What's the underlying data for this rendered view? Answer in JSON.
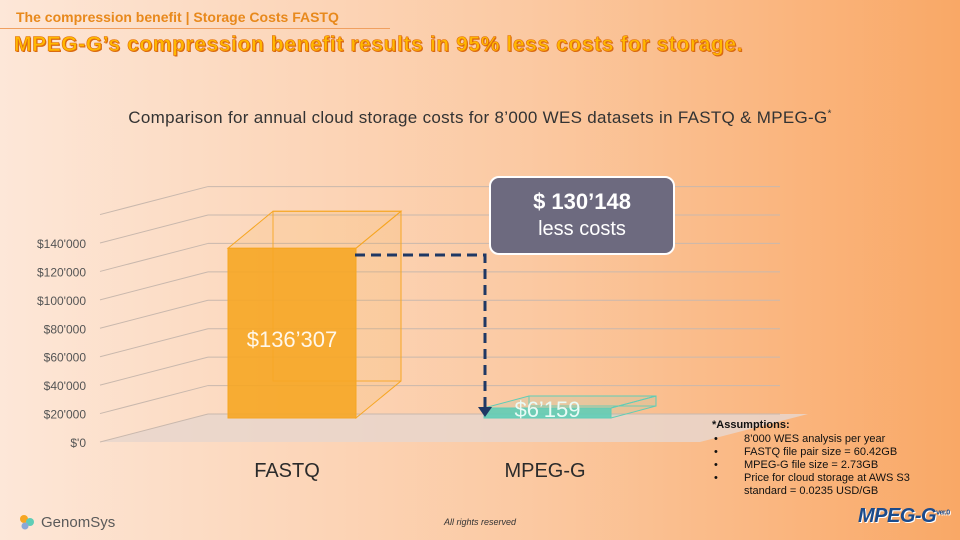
{
  "header": {
    "tag": "The compression benefit | Storage Costs FASTQ",
    "headline": "MPEG-G’s compression benefit results in 95% less costs for storage."
  },
  "chart_data": {
    "type": "bar",
    "title": "Comparison for annual cloud storage costs for 8’000 WES datasets in FASTQ & MPEG-G",
    "title_footnote": "*",
    "categories": [
      "FASTQ",
      "MPEG-G"
    ],
    "values": [
      136307,
      6159
    ],
    "value_labels": [
      "$136’307",
      "$6’159"
    ],
    "ylim": [
      0,
      140000
    ],
    "yticks": [
      0,
      20000,
      40000,
      60000,
      80000,
      100000,
      120000,
      140000
    ],
    "ytick_labels": [
      "$'0",
      "$20'000",
      "$40'000",
      "$60'000",
      "$80'000",
      "$100'000",
      "$120'000",
      "$140'000"
    ],
    "colors": [
      "#f6a623",
      "#5fcdb6"
    ],
    "style": "3d",
    "grid": true
  },
  "annotation": {
    "amount": "$ 130’148",
    "label": "less costs",
    "bg_color": "#6d6a7f"
  },
  "assumptions": {
    "heading": "*Assumptions:",
    "items": [
      "8’000 WES analysis per year",
      "FASTQ file pair size = 60.42GB",
      "MPEG-G file size = 2.73GB",
      "Price for cloud storage at AWS S3 standard = 0.0235 USD/GB"
    ]
  },
  "footer": {
    "brand": "GenomSys",
    "rights": "All rights reserved",
    "logo_text": "MPEG-G",
    "logo_sup": "ver.0"
  }
}
